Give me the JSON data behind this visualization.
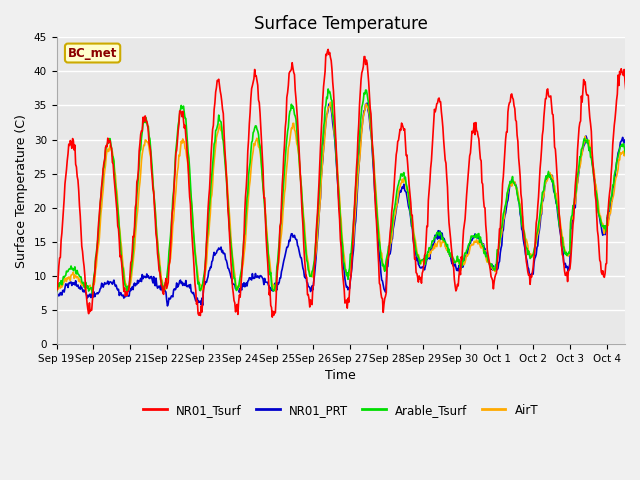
{
  "title": "Surface Temperature",
  "ylabel": "Surface Temperature (C)",
  "xlabel": "Time",
  "annotation": "BC_met",
  "ylim": [
    0,
    45
  ],
  "xlim": [
    0,
    15.5
  ],
  "series_colors": {
    "NR01_Tsurf": "#ff0000",
    "NR01_PRT": "#0000cc",
    "Arable_Tsurf": "#00dd00",
    "AirT": "#ffaa00"
  },
  "series_lw": 1.2,
  "xtick_labels": [
    "Sep 19",
    "Sep 20",
    "Sep 21",
    "Sep 22",
    "Sep 23",
    "Sep 24",
    "Sep 25",
    "Sep 26",
    "Sep 27",
    "Sep 28",
    "Sep 29",
    "Sep 30",
    "Oct 1",
    "Oct 2",
    "Oct 3",
    "Oct 4"
  ],
  "ytick_labels": [
    0,
    5,
    10,
    15,
    20,
    25,
    30,
    35,
    40,
    45
  ],
  "grid_color": "#ffffff",
  "facecolor": "#e8e8e8",
  "figfacecolor": "#f0f0f0",
  "title_fontsize": 12,
  "tick_fontsize": 7.5,
  "label_fontsize": 9,
  "annot_fontsize": 8.5
}
